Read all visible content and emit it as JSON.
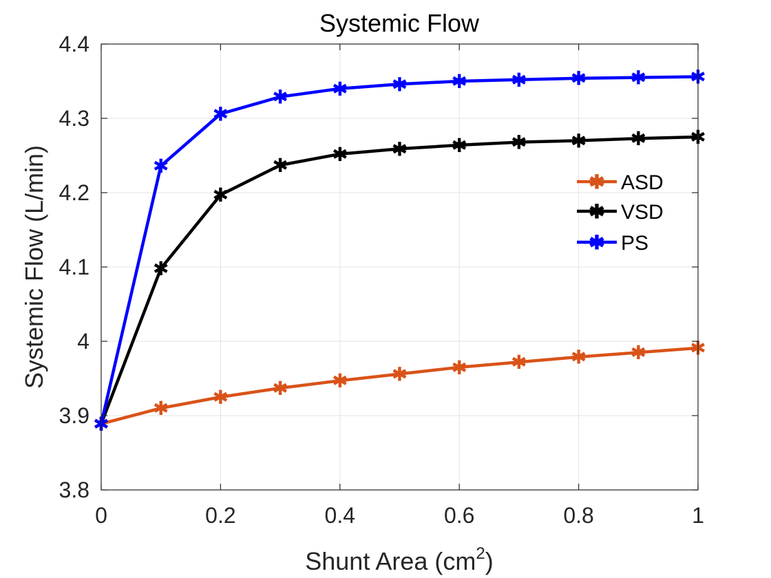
{
  "chart_data": {
    "type": "line",
    "title": "Systemic Flow",
    "xlabel_main": "Shunt Area (cm",
    "xlabel_sup": "2",
    "xlabel_tail": ")",
    "ylabel": "Systemic Flow (L/min)",
    "x": [
      0,
      0.1,
      0.2,
      0.3,
      0.4,
      0.5,
      0.6,
      0.7,
      0.8,
      0.9,
      1.0
    ],
    "xlim": [
      0,
      1
    ],
    "ylim": [
      3.8,
      4.4
    ],
    "xticks": [
      0,
      0.2,
      0.4,
      0.6,
      0.8,
      1
    ],
    "xtick_labels": [
      "0",
      "0.2",
      "0.4",
      "0.6",
      "0.8",
      "1"
    ],
    "yticks": [
      3.8,
      3.9,
      4.0,
      4.1,
      4.2,
      4.3,
      4.4
    ],
    "ytick_labels": [
      "3.8",
      "3.9",
      "4",
      "4.1",
      "4.2",
      "4.3",
      "4.4"
    ],
    "grid": true,
    "legend_position": "right",
    "series": [
      {
        "name": "ASD",
        "color": "#D95319",
        "values": [
          3.889,
          3.91,
          3.925,
          3.937,
          3.947,
          3.956,
          3.965,
          3.972,
          3.979,
          3.985,
          3.991
        ]
      },
      {
        "name": "VSD",
        "color": "#000000",
        "values": [
          3.889,
          4.098,
          4.197,
          4.237,
          4.252,
          4.259,
          4.264,
          4.268,
          4.27,
          4.273,
          4.275
        ]
      },
      {
        "name": "PS",
        "color": "#0000FF",
        "values": [
          3.889,
          4.236,
          4.306,
          4.329,
          4.34,
          4.346,
          4.35,
          4.352,
          4.354,
          4.355,
          4.356
        ]
      }
    ]
  }
}
